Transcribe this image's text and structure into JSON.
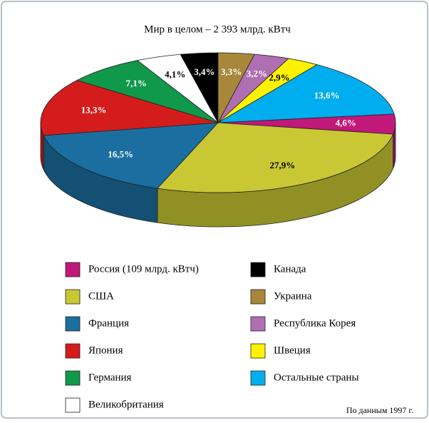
{
  "chart_data": {
    "type": "pie3d",
    "title": "Мир в целом – 2 393 млрд. кВтч",
    "note": "По данным 1997 г.",
    "categories": [
      "Россия (109 млрд. кВтч)",
      "США",
      "Франция",
      "Япония",
      "Германия",
      "Великобритания",
      "Канада",
      "Украина",
      "Республика Корея",
      "Швеция",
      "Остальные страны"
    ],
    "values": [
      4.6,
      27.9,
      16.5,
      13.3,
      7.1,
      4.1,
      3.4,
      3.3,
      3.2,
      2.9,
      13.6
    ],
    "value_labels": [
      "4,6%",
      "27,9%",
      "16,5%",
      "13,3%",
      "7,1%",
      "4,1%",
      "3,4%",
      "3,3%",
      "3,2%",
      "2,9%",
      "13,6%"
    ],
    "colors": [
      "#c2187a",
      "#c9c834",
      "#1a6fa0",
      "#d41c1c",
      "#10994a",
      "#ffffff",
      "#000000",
      "#a8873a",
      "#b06fb2",
      "#fff200",
      "#00aeef"
    ],
    "legend": "bottom"
  }
}
